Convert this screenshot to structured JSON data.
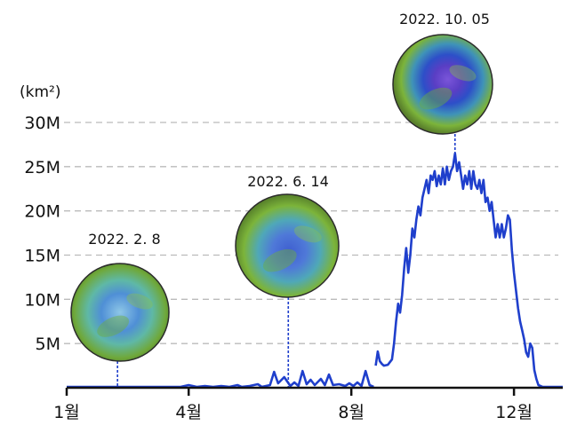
{
  "chart_data": {
    "type": "line",
    "ylabel": "(km²)",
    "x_unit": "month",
    "xlim": [
      1,
      13.2
    ],
    "ylim": [
      0,
      30
    ],
    "y_ticks": [
      5,
      10,
      15,
      20,
      25,
      30
    ],
    "y_tick_labels": [
      "5M",
      "10M",
      "15M",
      "20M",
      "25M",
      "30M"
    ],
    "x_ticks": [
      1,
      4,
      8,
      12
    ],
    "x_tick_labels": [
      "1월",
      "4월",
      "8월",
      "12월"
    ],
    "grid": "horizontal-dashed",
    "colors": {
      "line": "#1f3fcc",
      "grid": "#bbbbbb",
      "axis": "#111111"
    },
    "series": [
      {
        "values_unit": "million km²",
        "segments": [
          [
            [
              1.0,
              0.1
            ],
            [
              2.0,
              0.1
            ],
            [
              3.0,
              0.1
            ],
            [
              3.8,
              0.1
            ],
            [
              4.0,
              0.3
            ],
            [
              4.2,
              0.1
            ],
            [
              4.4,
              0.2
            ],
            [
              4.6,
              0.1
            ],
            [
              4.8,
              0.2
            ],
            [
              5.0,
              0.1
            ],
            [
              5.2,
              0.3
            ],
            [
              5.3,
              0.1
            ],
            [
              5.5,
              0.2
            ],
            [
              5.7,
              0.4
            ],
            [
              5.8,
              0.1
            ],
            [
              6.0,
              0.3
            ],
            [
              6.1,
              1.8
            ],
            [
              6.2,
              0.5
            ],
            [
              6.35,
              1.2
            ],
            [
              6.5,
              0.2
            ],
            [
              6.6,
              0.6
            ],
            [
              6.7,
              0.2
            ],
            [
              6.8,
              1.9
            ],
            [
              6.9,
              0.4
            ],
            [
              7.0,
              0.9
            ],
            [
              7.1,
              0.3
            ],
            [
              7.25,
              1.0
            ],
            [
              7.35,
              0.3
            ],
            [
              7.45,
              1.5
            ],
            [
              7.55,
              0.3
            ],
            [
              7.7,
              0.4
            ],
            [
              7.85,
              0.2
            ],
            [
              7.95,
              0.5
            ],
            [
              8.05,
              0.2
            ],
            [
              8.15,
              0.6
            ],
            [
              8.25,
              0.2
            ],
            [
              8.35,
              1.9
            ],
            [
              8.45,
              0.3
            ],
            [
              8.55,
              0.1
            ]
          ],
          [
            [
              8.6,
              2.5
            ],
            [
              8.65,
              4.1
            ],
            [
              8.7,
              3.0
            ],
            [
              8.75,
              2.7
            ],
            [
              8.8,
              2.5
            ],
            [
              8.9,
              2.6
            ],
            [
              9.0,
              3.2
            ],
            [
              9.05,
              5.0
            ],
            [
              9.1,
              7.5
            ],
            [
              9.15,
              9.5
            ],
            [
              9.2,
              8.5
            ],
            [
              9.25,
              10.5
            ],
            [
              9.3,
              13.5
            ],
            [
              9.35,
              15.8
            ],
            [
              9.4,
              13.0
            ],
            [
              9.45,
              15.0
            ],
            [
              9.5,
              18.0
            ],
            [
              9.55,
              17.0
            ],
            [
              9.6,
              19.0
            ],
            [
              9.65,
              20.5
            ],
            [
              9.7,
              19.5
            ],
            [
              9.75,
              21.5
            ],
            [
              9.8,
              22.5
            ],
            [
              9.85,
              23.5
            ],
            [
              9.9,
              22.0
            ],
            [
              9.95,
              24.0
            ],
            [
              10.0,
              23.5
            ],
            [
              10.05,
              24.5
            ],
            [
              10.1,
              22.8
            ],
            [
              10.15,
              24.0
            ],
            [
              10.2,
              23.0
            ],
            [
              10.25,
              24.8
            ],
            [
              10.3,
              23.0
            ],
            [
              10.35,
              25.0
            ],
            [
              10.4,
              23.5
            ],
            [
              10.45,
              24.5
            ],
            [
              10.5,
              25.0
            ],
            [
              10.55,
              26.5
            ],
            [
              10.6,
              24.5
            ],
            [
              10.65,
              25.5
            ],
            [
              10.7,
              24.0
            ],
            [
              10.75,
              22.5
            ],
            [
              10.8,
              24.0
            ],
            [
              10.85,
              23.0
            ],
            [
              10.9,
              24.5
            ],
            [
              10.95,
              22.5
            ],
            [
              11.0,
              24.5
            ],
            [
              11.05,
              23.0
            ],
            [
              11.1,
              22.5
            ],
            [
              11.15,
              23.5
            ],
            [
              11.2,
              22.0
            ],
            [
              11.25,
              23.5
            ],
            [
              11.3,
              21.0
            ],
            [
              11.35,
              21.5
            ],
            [
              11.4,
              20.0
            ],
            [
              11.45,
              21.0
            ],
            [
              11.5,
              19.0
            ],
            [
              11.55,
              17.0
            ],
            [
              11.6,
              18.5
            ],
            [
              11.65,
              17.0
            ],
            [
              11.7,
              18.5
            ],
            [
              11.75,
              17.0
            ],
            [
              11.8,
              18.0
            ],
            [
              11.85,
              19.5
            ],
            [
              11.9,
              19.0
            ],
            [
              11.95,
              15.5
            ],
            [
              12.0,
              13.0
            ],
            [
              12.05,
              11.0
            ],
            [
              12.1,
              9.0
            ],
            [
              12.15,
              7.5
            ],
            [
              12.2,
              6.5
            ],
            [
              12.25,
              5.5
            ],
            [
              12.3,
              4.0
            ],
            [
              12.35,
              3.5
            ],
            [
              12.4,
              5.0
            ],
            [
              12.45,
              4.5
            ],
            [
              12.5,
              2.0
            ],
            [
              12.55,
              1.0
            ],
            [
              12.6,
              0.3
            ],
            [
              12.7,
              0.1
            ],
            [
              13.0,
              0.1
            ],
            [
              13.2,
              0.1
            ]
          ]
        ]
      }
    ],
    "annotations": [
      {
        "label": "2022. 2. 8",
        "x": 2.25,
        "y": 0,
        "image_palette": "light"
      },
      {
        "label": "2022. 6. 14",
        "x": 6.45,
        "y": 0,
        "image_palette": "medium"
      },
      {
        "label": "2022. 10. 05",
        "x": 10.55,
        "y": 26.5,
        "image_palette": "dark"
      }
    ]
  }
}
